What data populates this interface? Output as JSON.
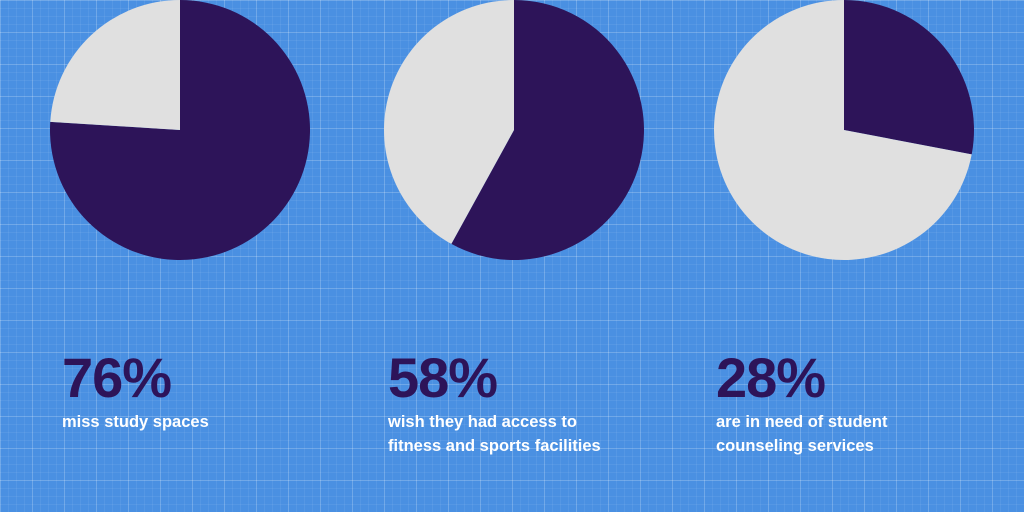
{
  "colors": {
    "background": "#4a90e2",
    "filled": "#2d1459",
    "remainder": "#e0e0e0",
    "percent_text": "#2d1459",
    "caption_text": "#ffffff"
  },
  "chart_data": [
    {
      "type": "pie",
      "slices": [
        {
          "value": 76,
          "role": "filled"
        },
        {
          "value": 24,
          "role": "remainder"
        }
      ],
      "value_label": "76%",
      "caption_lines": [
        "miss study spaces"
      ]
    },
    {
      "type": "pie",
      "slices": [
        {
          "value": 58,
          "role": "filled"
        },
        {
          "value": 42,
          "role": "remainder"
        }
      ],
      "value_label": "58%",
      "caption_lines": [
        "wish they had access to",
        "fitness and sports facilities"
      ]
    },
    {
      "type": "pie",
      "slices": [
        {
          "value": 28,
          "role": "filled"
        },
        {
          "value": 72,
          "role": "remainder"
        }
      ],
      "value_label": "28%",
      "caption_lines": [
        "are in need of student",
        "counseling services"
      ]
    }
  ]
}
